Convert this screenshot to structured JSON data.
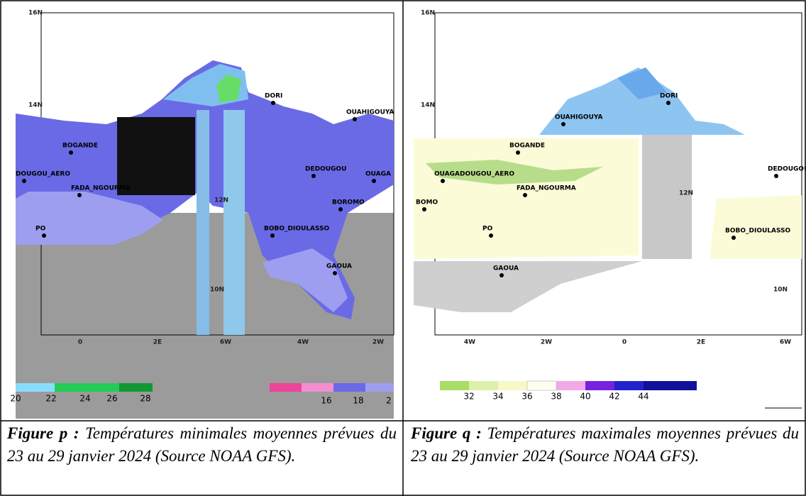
{
  "figures": [
    {
      "map": {
        "axis_labels": [
          "16N",
          "14N",
          "12N",
          "10N",
          "0",
          "2E",
          "6W",
          "4W",
          "2W"
        ],
        "places": [
          "DORI",
          "OUAHIGOUYA",
          "BOGANDE",
          "DEDOUGOU",
          "OUAGA",
          "DOUGOU_AERO",
          "FADA_NGOURMA",
          "BOROMO",
          "BOBO_DIOULASSO",
          "PO",
          "GAOUA"
        ]
      },
      "colorbar": [
        "20",
        "22",
        "24",
        "26",
        "28",
        "16",
        "18",
        "2"
      ],
      "caption": {
        "label": "Figure p :",
        "text": "Températures minimales moyennes prévues du 23 au 29 janvier 2024 (Source NOAA GFS)."
      }
    },
    {
      "map": {
        "axis_labels": [
          "16N",
          "14N",
          "12N",
          "10N",
          "4W",
          "2W",
          "0",
          "2E",
          "6W"
        ],
        "places": [
          "DORI",
          "OUAHIGOUYA",
          "BOGANDE",
          "OUAGADOUGOU_AERO",
          "FADA_NGOURMA",
          "DEDOUGOU",
          "PO",
          "BOBO_DIOULASSO",
          "GAOUA",
          "BOMO"
        ]
      },
      "colorbar": [
        "32",
        "34",
        "36",
        "38",
        "40",
        "42",
        "44"
      ],
      "caption": {
        "label": "Figure q :",
        "text": "Températures maximales moyennes prévues du 23 au 29 janvier 2024 (Source NOAA GFS)."
      }
    }
  ]
}
